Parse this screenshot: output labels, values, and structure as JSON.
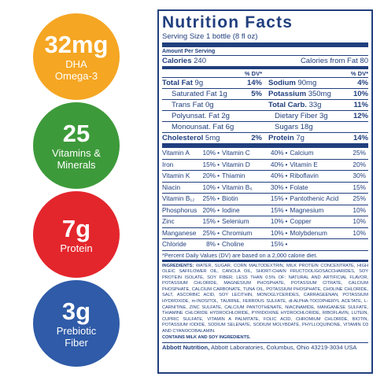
{
  "badges": [
    {
      "value": "32mg",
      "lines": [
        "DHA",
        "Omega-3"
      ],
      "color": "#f5a623"
    },
    {
      "value": "25",
      "lines": [
        "Vitamins &",
        "Minerals"
      ],
      "color": "#3d9a3a"
    },
    {
      "value": "7g",
      "lines": [
        "Protein"
      ],
      "color": "#e3262c"
    },
    {
      "value": "3g",
      "lines": [
        "Prebiotic",
        "Fiber"
      ],
      "color": "#2f5ba8"
    }
  ],
  "label": {
    "title": "Nutrition Facts",
    "serving": "Serving Size 1 bottle (8 fl oz)",
    "amount_per_serving": "Amount Per Serving",
    "calories": {
      "name": "Calories",
      "amount": "240"
    },
    "calories_fat": "Calories from Fat 80",
    "dv_heads": [
      "% DV*",
      "% DV*"
    ],
    "nutrients": [
      [
        {
          "name": "Total Fat",
          "amount": "9g",
          "pct": "14%"
        },
        {
          "name": "Sodium",
          "amount": "90mg",
          "pct": "4%"
        }
      ],
      [
        {
          "name": "Saturated Fat",
          "amount": "1g",
          "pct": "5%",
          "sub": true
        },
        {
          "name": "Potassium",
          "amount": "350mg",
          "pct": "10%"
        }
      ],
      [
        {
          "name": "Trans Fat",
          "amount": "0g",
          "sub": true
        },
        {
          "name": "Total Carb.",
          "amount": "33g",
          "pct": "11%"
        }
      ],
      [
        {
          "name": "Polyunsat. Fat",
          "amount": "2g",
          "sub": true
        },
        {
          "name": "Dietary Fiber",
          "amount": "3g",
          "pct": "12%",
          "sub": true
        }
      ],
      [
        {
          "name": "Monounsat. Fat",
          "amount": "6g",
          "sub": true
        },
        {
          "name": "Sugars",
          "amount": "18g",
          "sub": true
        }
      ],
      [
        {
          "name": "Cholesterol",
          "amount": "5mg",
          "pct": "2%"
        },
        {
          "name": "Protein",
          "amount": "7g",
          "pct": "14%"
        }
      ]
    ],
    "vitamins": [
      [
        [
          "Vitamin A",
          "10%"
        ],
        [
          "Vitamin C",
          "40%"
        ],
        [
          "Calcium",
          "25%"
        ]
      ],
      [
        [
          "Iron",
          "15%"
        ],
        [
          "Vitamin D",
          "40%"
        ],
        [
          "Vitamin E",
          "20%"
        ]
      ],
      [
        [
          "Vitamin K",
          "20%"
        ],
        [
          "Thiamin",
          "40%"
        ],
        [
          "Riboflavin",
          "30%"
        ]
      ],
      [
        [
          "Niacin",
          "10%"
        ],
        [
          "Vitamin B₆",
          "30%"
        ],
        [
          "Folate",
          "15%"
        ]
      ],
      [
        [
          "Vitamin B₁₂",
          "25%"
        ],
        [
          "Biotin",
          "15%"
        ],
        [
          "Pantothenic Acid",
          "25%"
        ]
      ],
      [
        [
          "Phosphorus",
          "20%"
        ],
        [
          "Iodine",
          "15%"
        ],
        [
          "Magnesium",
          "10%"
        ]
      ],
      [
        [
          "Zinc",
          "15%"
        ],
        [
          "Selenium",
          "10%"
        ],
        [
          "Copper",
          "10%"
        ]
      ],
      [
        [
          "Manganese",
          "25%"
        ],
        [
          "Chromium",
          "10%"
        ],
        [
          "Molybdenum",
          "10%"
        ]
      ],
      [
        [
          "Chloride",
          "8%"
        ],
        [
          "Choline",
          "15%"
        ]
      ]
    ],
    "note": "*Percent Daily Values (DV) are based on a 2,000 calorie diet.",
    "ingredients_head": "INGREDIENTS:",
    "ingredients": "WATER, SUGAR, CORN MALTODEXTRIN, MILK PROTEIN CONCENTRATE, HIGH OLEIC SAFFLOWER OIL, CANOLA OIL, SHORT-CHAIN FRUCTOOLIGOSACCHARIDES, SOY PROTEIN ISOLATE, SOY FIBER; LESS THAN 0.5% OF: NATURAL AND ARTIFICIAL FLAVOR, POTASSIUM CHLORIDE, MAGNESIUM PHOSPHATE, POTASSIUM CITRATE, CALCIUM PHOSPHATE, CALCIUM CARBONATE, TUNA OIL, POTASSIUM PHOSPHATE, CHOLINE CHLORIDE, SALT, ASCORBIC ACID, SOY LECITHIN, MONOGLYCERIDES, CARRAGEENAN, POTASSIUM HYDROXIDE, m-INOSITOL, TAURINE, FERROUS SULFATE, dl-ALPHA-TOCOPHERYL ACETATE, L-CARNITINE, ZINC SULFATE, CALCIUM PANTOTHENATE, NIACINAMIDE, MANGANESE SULFATE, THIAMINE CHLORIDE HYDROCHLORIDE, PYRIDOXINE HYDROCHLORIDE, RIBOFLAVIN, LUTEIN, CUPRIC SULFATE, VITAMIN A PALMITATE, FOLIC ACID, CHROMIUM CHLORIDE, BIOTIN, POTASSIUM IODIDE, SODIUM SELENATE, SODIUM MOLYBDATE, PHYLLOQUINONE, VITAMIN D3 AND CYANOCOBALAMIN.",
    "contains": "CONTAINS MILK AND SOY INGREDIENTS.",
    "maker": "Abbott Nutrition,",
    "address": "Abbott Laboratories, Columbus, Ohio 43219-3034 USA"
  }
}
